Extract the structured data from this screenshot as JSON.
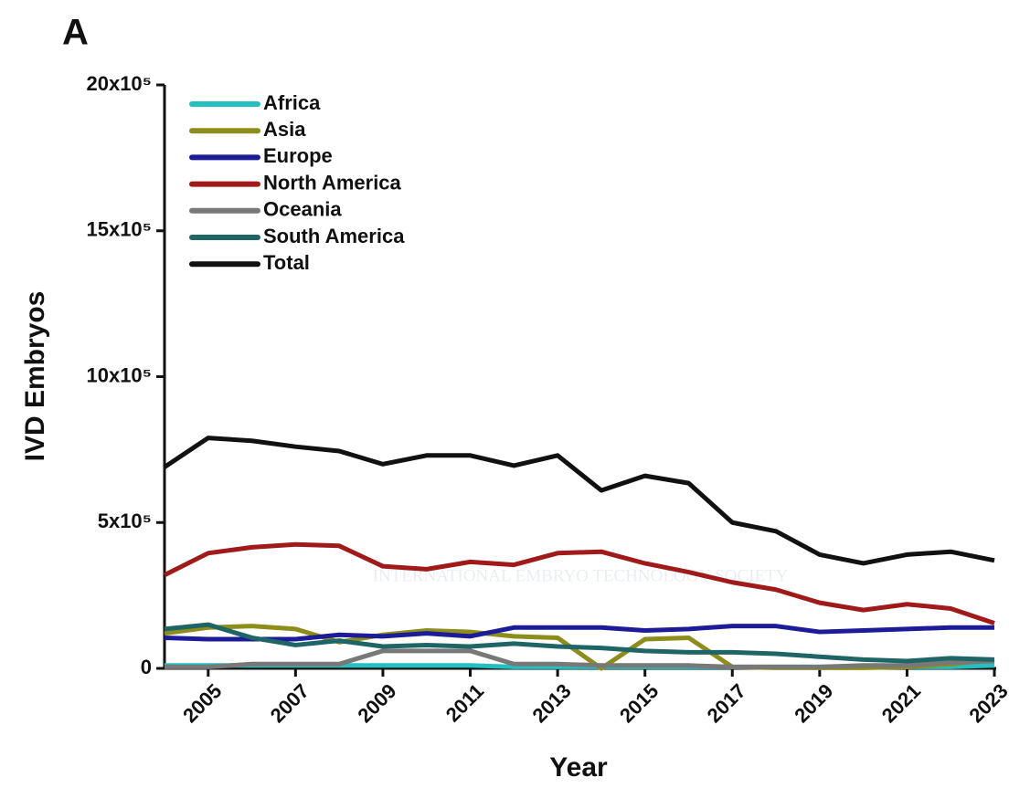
{
  "panel_label": "A",
  "watermark": "INTERNATIONAL EMBRYO TECHNOLOGY SOCIETY",
  "chart_data": {
    "type": "line",
    "x_label": "Year",
    "y_label": "IVD Embryos",
    "x": [
      2004,
      2005,
      2006,
      2007,
      2008,
      2009,
      2010,
      2011,
      2012,
      2013,
      2014,
      2015,
      2016,
      2017,
      2018,
      2019,
      2020,
      2021,
      2022,
      2023
    ],
    "xlim": [
      2004,
      2023
    ],
    "xticks": [
      2005,
      2007,
      2009,
      2011,
      2013,
      2015,
      2017,
      2019,
      2021,
      2023
    ],
    "ylim": [
      0,
      2000000
    ],
    "yticks": [
      0,
      {
        "value": 500000,
        "label": "5x10⁵"
      },
      {
        "value": 1000000,
        "label": "10x10⁵"
      },
      {
        "value": 1500000,
        "label": "15x10⁵"
      },
      {
        "value": 2000000,
        "label": "20x10⁵"
      }
    ],
    "legend": "upper left",
    "series": [
      {
        "name": "Africa",
        "color": "#22c0c0",
        "values": [
          10000,
          10000,
          10000,
          10000,
          10000,
          10000,
          10000,
          10000,
          5000,
          5000,
          5000,
          5000,
          5000,
          5000,
          5000,
          5000,
          5000,
          5000,
          5000,
          10000
        ]
      },
      {
        "name": "Asia",
        "color": "#8d8d1c",
        "values": [
          120000,
          140000,
          145000,
          135000,
          90000,
          115000,
          130000,
          125000,
          110000,
          105000,
          0,
          100000,
          105000,
          5000,
          2000,
          2000,
          2000,
          5000,
          15000,
          30000
        ]
      },
      {
        "name": "Europe",
        "color": "#1c1c98",
        "values": [
          105000,
          100000,
          100000,
          100000,
          115000,
          110000,
          120000,
          110000,
          140000,
          140000,
          140000,
          130000,
          135000,
          145000,
          145000,
          125000,
          130000,
          135000,
          140000,
          140000
        ]
      },
      {
        "name": "North America",
        "color": "#a01a1a",
        "values": [
          320000,
          395000,
          415000,
          425000,
          420000,
          350000,
          340000,
          365000,
          355000,
          395000,
          400000,
          360000,
          330000,
          295000,
          270000,
          225000,
          200000,
          220000,
          205000,
          155000
        ]
      },
      {
        "name": "Oceania",
        "color": "#787878",
        "values": [
          5000,
          5000,
          15000,
          15000,
          15000,
          60000,
          60000,
          60000,
          15000,
          15000,
          10000,
          10000,
          10000,
          5000,
          5000,
          5000,
          10000,
          10000,
          20000,
          25000
        ]
      },
      {
        "name": "South America",
        "color": "#1f6565",
        "values": [
          135000,
          150000,
          105000,
          80000,
          95000,
          75000,
          80000,
          75000,
          85000,
          75000,
          70000,
          60000,
          55000,
          55000,
          50000,
          40000,
          30000,
          25000,
          35000,
          30000
        ]
      },
      {
        "name": "Total",
        "color": "#111111",
        "values": [
          690000,
          790000,
          780000,
          760000,
          745000,
          700000,
          730000,
          730000,
          695000,
          730000,
          610000,
          660000,
          635000,
          500000,
          470000,
          390000,
          360000,
          390000,
          400000,
          370000
        ]
      }
    ]
  }
}
